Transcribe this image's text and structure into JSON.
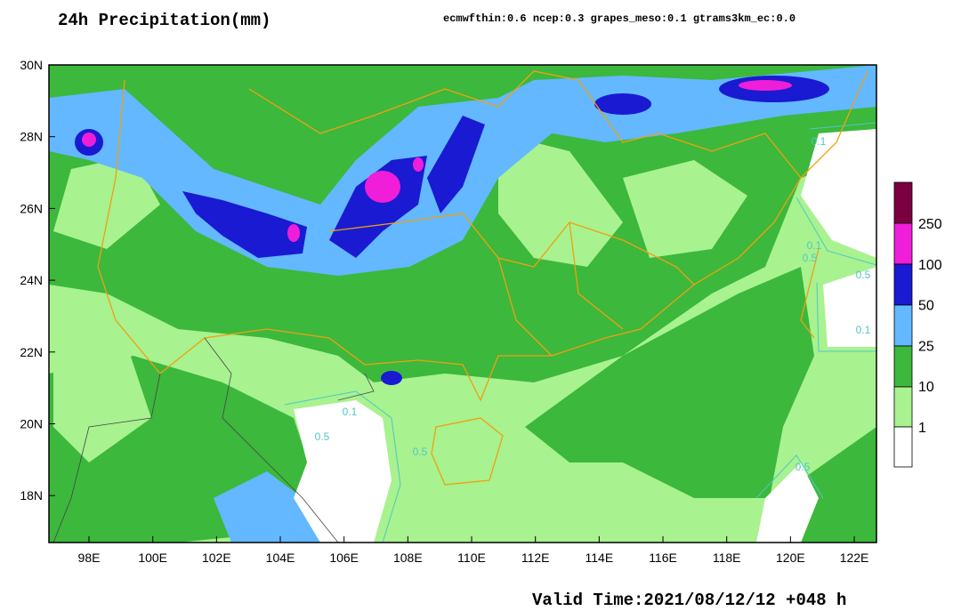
{
  "header": {
    "title": "24h Precipitation(mm)",
    "weights": "ecmwfthin:0.6 ncep:0.3 grapes_meso:0.1 gtrams3km_ec:0.0"
  },
  "map": {
    "lat_labels": [
      "30N",
      "28N",
      "26N",
      "24N",
      "22N",
      "20N",
      "18N"
    ],
    "lon_labels": [
      "98E",
      "100E",
      "102E",
      "104E",
      "106E",
      "108E",
      "110E",
      "112E",
      "114E",
      "116E",
      "118E",
      "120E",
      "122E"
    ],
    "contour_labels": [
      "0.1",
      "0.1",
      "0.1",
      "0.1",
      "0.5",
      "0.5",
      "0.5",
      "0.5",
      "0.5"
    ]
  },
  "legend": {
    "labels": [
      "250",
      "100",
      "50",
      "25",
      "10",
      "1"
    ]
  },
  "footer": {
    "valid_time": "Valid Time:2021/08/12/12 +048 h"
  }
}
